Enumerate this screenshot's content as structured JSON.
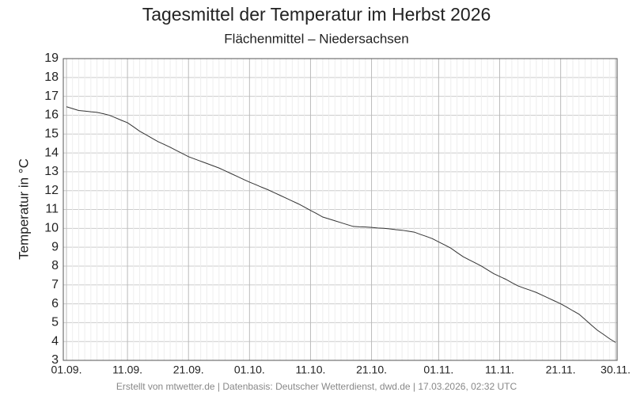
{
  "chart_data": {
    "type": "line",
    "title": "Tagesmittel der Temperatur im Herbst 2026",
    "subtitle": "Flächenmittel – Niedersachsen",
    "y_label": "Temperatur in °C",
    "footer": "Erstellt von mtwetter.de | Datenbasis: Deutscher Wetterdienst, dwd.de | 17.03.2026, 02:32 UTC",
    "categories": [
      "01.09.",
      null,
      null,
      null,
      null,
      null,
      null,
      null,
      null,
      null,
      "11.09.",
      null,
      null,
      null,
      null,
      null,
      null,
      null,
      null,
      null,
      "21.09.",
      null,
      null,
      null,
      null,
      null,
      null,
      null,
      null,
      null,
      "01.10.",
      null,
      null,
      null,
      null,
      null,
      null,
      null,
      null,
      null,
      "11.10.",
      null,
      null,
      null,
      null,
      null,
      null,
      null,
      null,
      null,
      "21.10.",
      null,
      null,
      null,
      null,
      null,
      null,
      null,
      null,
      null,
      null,
      "01.11.",
      null,
      null,
      null,
      null,
      null,
      null,
      null,
      null,
      null,
      "11.11.",
      null,
      null,
      null,
      null,
      null,
      null,
      null,
      null,
      null,
      "21.11.",
      null,
      null,
      null,
      null,
      null,
      null,
      null,
      null,
      "30.11."
    ],
    "values": [
      16.45,
      16.35,
      16.25,
      16.22,
      16.18,
      16.15,
      16.08,
      16.0,
      15.87,
      15.73,
      15.6,
      15.38,
      15.15,
      14.97,
      14.78,
      14.6,
      14.45,
      14.3,
      14.13,
      13.97,
      13.8,
      13.68,
      13.56,
      13.44,
      13.32,
      13.2,
      13.05,
      12.9,
      12.75,
      12.6,
      12.45,
      12.32,
      12.18,
      12.05,
      11.9,
      11.75,
      11.6,
      11.45,
      11.3,
      11.13,
      10.95,
      10.78,
      10.6,
      10.5,
      10.4,
      10.3,
      10.2,
      10.1,
      10.08,
      10.07,
      10.05,
      10.02,
      10.0,
      9.97,
      9.93,
      9.9,
      9.85,
      9.8,
      9.68,
      9.57,
      9.45,
      9.28,
      9.12,
      8.95,
      8.72,
      8.5,
      8.33,
      8.17,
      8.0,
      7.8,
      7.6,
      7.45,
      7.3,
      7.12,
      6.95,
      6.83,
      6.72,
      6.6,
      6.45,
      6.3,
      6.15,
      6.0,
      5.82,
      5.63,
      5.45,
      5.17,
      4.88,
      4.6,
      4.38,
      4.15,
      3.95
    ],
    "color": "#333333",
    "ylim": [
      3,
      19
    ],
    "yticks": [
      3,
      4,
      5,
      6,
      7,
      8,
      9,
      10,
      11,
      12,
      13,
      14,
      15,
      16,
      17,
      18,
      19
    ],
    "grid": true
  }
}
